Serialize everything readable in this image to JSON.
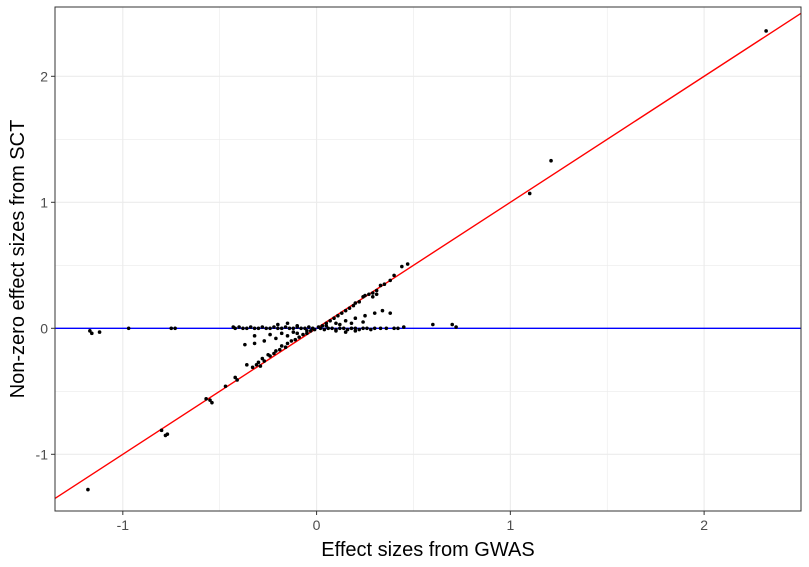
{
  "chart_data": {
    "type": "scatter",
    "title": "",
    "xlabel": "Effect sizes from GWAS",
    "ylabel": "Non-zero effect sizes from SCT",
    "xlim": [
      -1.35,
      2.5
    ],
    "ylim": [
      -1.45,
      2.55
    ],
    "x_ticks": [
      -1,
      0,
      1,
      2
    ],
    "y_ticks": [
      -1,
      0,
      1,
      2
    ],
    "x_tick_labels": [
      "-1",
      "0",
      "1",
      "2"
    ],
    "y_tick_labels": [
      "-1",
      "0",
      "1",
      "2"
    ],
    "grid": true,
    "colors": {
      "points": "#000000",
      "identity_line": "#ff0000",
      "zero_line": "#0000ff",
      "grid": "#ebebeb",
      "panel_border": "#333333"
    },
    "reference_lines": [
      {
        "type": "abline",
        "slope": 1,
        "intercept": 0,
        "color": "#ff0000"
      },
      {
        "type": "hline",
        "y": 0,
        "color": "#0000ff"
      }
    ],
    "points": [
      [
        2.32,
        2.36
      ],
      [
        1.21,
        1.33
      ],
      [
        1.1,
        1.07
      ],
      [
        -1.18,
        -1.28
      ],
      [
        -0.8,
        -0.81
      ],
      [
        -0.78,
        -0.85
      ],
      [
        -0.77,
        -0.84
      ],
      [
        -0.57,
        -0.56
      ],
      [
        -0.55,
        -0.57
      ],
      [
        -0.54,
        -0.59
      ],
      [
        -0.47,
        -0.46
      ],
      [
        -0.42,
        -0.39
      ],
      [
        -0.41,
        -0.41
      ],
      [
        -0.36,
        -0.29
      ],
      [
        -0.33,
        -0.31
      ],
      [
        -0.31,
        -0.29
      ],
      [
        -0.3,
        -0.27
      ],
      [
        -0.29,
        -0.3
      ],
      [
        -0.28,
        -0.24
      ],
      [
        -0.27,
        -0.26
      ],
      [
        -0.25,
        -0.21
      ],
      [
        -0.24,
        -0.22
      ],
      [
        -0.22,
        -0.2
      ],
      [
        -0.21,
        -0.18
      ],
      [
        -0.19,
        -0.17
      ],
      [
        -0.18,
        -0.14
      ],
      [
        -0.16,
        -0.15
      ],
      [
        -0.15,
        -0.12
      ],
      [
        -0.13,
        -0.1
      ],
      [
        -0.11,
        -0.09
      ],
      [
        -0.09,
        -0.07
      ],
      [
        -0.07,
        -0.05
      ],
      [
        -0.05,
        -0.04
      ],
      [
        -0.03,
        -0.02
      ],
      [
        -0.01,
        -0.01
      ],
      [
        0.01,
        0.01
      ],
      [
        0.03,
        0.02
      ],
      [
        0.05,
        0.04
      ],
      [
        0.07,
        0.06
      ],
      [
        0.09,
        0.08
      ],
      [
        0.11,
        0.1
      ],
      [
        0.13,
        0.12
      ],
      [
        0.15,
        0.14
      ],
      [
        0.17,
        0.16
      ],
      [
        0.19,
        0.18
      ],
      [
        0.2,
        0.2
      ],
      [
        0.22,
        0.21
      ],
      [
        0.24,
        0.25
      ],
      [
        0.25,
        0.26
      ],
      [
        0.27,
        0.27
      ],
      [
        0.29,
        0.28
      ],
      [
        0.31,
        0.3
      ],
      [
        0.33,
        0.34
      ],
      [
        0.35,
        0.35
      ],
      [
        0.38,
        0.38
      ],
      [
        0.4,
        0.42
      ],
      [
        0.44,
        0.49
      ],
      [
        0.47,
        0.51
      ],
      [
        0.29,
        0.25
      ],
      [
        0.31,
        0.27
      ],
      [
        0.38,
        0.12
      ],
      [
        -0.37,
        -0.13
      ],
      [
        -0.32,
        -0.12
      ],
      [
        -0.27,
        -0.1
      ],
      [
        -0.21,
        -0.08
      ],
      [
        -0.15,
        -0.06
      ],
      [
        -0.1,
        -0.04
      ],
      [
        -0.05,
        -0.02
      ],
      [
        0.05,
        0.02
      ],
      [
        0.1,
        0.04
      ],
      [
        0.15,
        0.06
      ],
      [
        0.2,
        0.08
      ],
      [
        0.25,
        0.1
      ],
      [
        0.3,
        0.12
      ],
      [
        0.34,
        0.14
      ],
      [
        -0.32,
        -0.06
      ],
      [
        -0.24,
        -0.05
      ],
      [
        -0.18,
        -0.04
      ],
      [
        -0.12,
        -0.03
      ],
      [
        0.12,
        0.03
      ],
      [
        0.18,
        0.04
      ],
      [
        0.24,
        0.05
      ],
      [
        -0.2,
        0.03
      ],
      [
        -0.15,
        0.04
      ],
      [
        -0.1,
        0.02
      ],
      [
        0.1,
        -0.02
      ],
      [
        0.15,
        -0.03
      ],
      [
        0.2,
        -0.02
      ],
      [
        -0.43,
        0.01
      ],
      [
        -0.42,
        0.0
      ],
      [
        -0.4,
        0.01
      ],
      [
        -0.38,
        0.0
      ],
      [
        -0.36,
        0.0
      ],
      [
        -0.34,
        0.01
      ],
      [
        -0.32,
        0.0
      ],
      [
        -0.3,
        0.0
      ],
      [
        -0.28,
        0.01
      ],
      [
        -0.26,
        0.0
      ],
      [
        -0.24,
        0.0
      ],
      [
        -0.22,
        0.01
      ],
      [
        -0.2,
        0.0
      ],
      [
        -0.18,
        0.0
      ],
      [
        -0.16,
        0.01
      ],
      [
        -0.14,
        0.0
      ],
      [
        -0.12,
        0.0
      ],
      [
        -0.1,
        0.01
      ],
      [
        -0.08,
        0.0
      ],
      [
        -0.06,
        0.0
      ],
      [
        -0.04,
        0.01
      ],
      [
        -0.02,
        0.0
      ],
      [
        0.02,
        0.0
      ],
      [
        0.04,
        -0.01
      ],
      [
        0.06,
        0.0
      ],
      [
        0.08,
        0.0
      ],
      [
        0.1,
        -0.01
      ],
      [
        0.12,
        0.0
      ],
      [
        0.14,
        0.0
      ],
      [
        0.16,
        -0.01
      ],
      [
        0.18,
        0.0
      ],
      [
        0.2,
        0.0
      ],
      [
        0.22,
        -0.01
      ],
      [
        0.24,
        0.0
      ],
      [
        0.26,
        0.0
      ],
      [
        0.28,
        -0.01
      ],
      [
        0.3,
        0.0
      ],
      [
        0.33,
        0.0
      ],
      [
        0.36,
        0.0
      ],
      [
        0.4,
        0.0
      ],
      [
        0.42,
        0.0
      ],
      [
        0.45,
        0.01
      ],
      [
        0.6,
        0.03
      ],
      [
        0.7,
        0.03
      ],
      [
        0.72,
        0.01
      ],
      [
        -1.17,
        -0.02
      ],
      [
        -1.16,
        -0.04
      ],
      [
        -1.12,
        -0.03
      ],
      [
        -0.97,
        0.0
      ],
      [
        -0.75,
        0.0
      ],
      [
        -0.73,
        0.0
      ]
    ]
  }
}
